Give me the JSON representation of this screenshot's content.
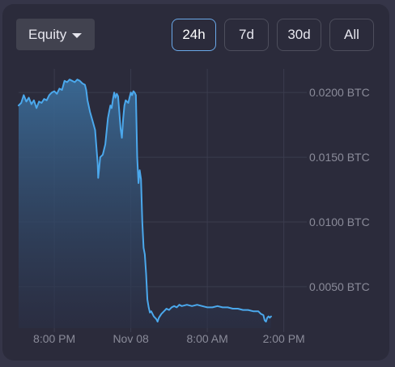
{
  "controls": {
    "metric_label": "Equity",
    "ranges": [
      {
        "label": "24h",
        "active": true
      },
      {
        "label": "7d",
        "active": false
      },
      {
        "label": "30d",
        "active": false
      },
      {
        "label": "All",
        "active": false
      }
    ],
    "caret_icon": "chevron-down-icon"
  },
  "colors": {
    "panel_bg": "#2b2b3b",
    "line": "#4ba8ec",
    "fill_top": "#3a6a96",
    "fill_bottom": "#2a2f45",
    "grid": "#3b3c4e",
    "axis_text": "#8a8b99",
    "active_border": "#6aa8e8"
  },
  "chart_data": {
    "type": "area",
    "title": "",
    "xlabel": "",
    "ylabel": "",
    "ylim": [
      0.0018,
      0.0212
    ],
    "y_ticks": [
      0.005,
      0.01,
      0.015,
      0.02
    ],
    "y_tick_labels": [
      "0.0050 BTC",
      "0.0100 BTC",
      "0.0150 BTC",
      "0.0200 BTC"
    ],
    "x_ticks": [
      1.0,
      4.0,
      7.0,
      10.0
    ],
    "x_tick_labels": [
      "8:00 PM",
      "Nov 08",
      "8:00 AM",
      "2:00 PM"
    ],
    "grid": true,
    "series": [
      {
        "values": [
          [
            -0.4,
            0.019
          ],
          [
            -0.3,
            0.0192
          ],
          [
            -0.2,
            0.0198
          ],
          [
            -0.1,
            0.0193
          ],
          [
            0.0,
            0.0196
          ],
          [
            0.1,
            0.0191
          ],
          [
            0.2,
            0.0194
          ],
          [
            0.3,
            0.0188
          ],
          [
            0.4,
            0.0193
          ],
          [
            0.5,
            0.0192
          ],
          [
            0.6,
            0.0195
          ],
          [
            0.7,
            0.0194
          ],
          [
            0.8,
            0.0198
          ],
          [
            0.9,
            0.02
          ],
          [
            1.0,
            0.0201
          ],
          [
            1.1,
            0.0199
          ],
          [
            1.2,
            0.0203
          ],
          [
            1.3,
            0.0202
          ],
          [
            1.4,
            0.0209
          ],
          [
            1.5,
            0.0208
          ],
          [
            1.6,
            0.021
          ],
          [
            1.7,
            0.0209
          ],
          [
            1.8,
            0.0208
          ],
          [
            1.9,
            0.021
          ],
          [
            2.0,
            0.0209
          ],
          [
            2.1,
            0.0207
          ],
          [
            2.2,
            0.0206
          ],
          [
            2.25,
            0.0202
          ],
          [
            2.3,
            0.0194
          ],
          [
            2.4,
            0.0185
          ],
          [
            2.5,
            0.0178
          ],
          [
            2.6,
            0.0171
          ],
          [
            2.65,
            0.0158
          ],
          [
            2.7,
            0.0145
          ],
          [
            2.72,
            0.0134
          ],
          [
            2.76,
            0.0142
          ],
          [
            2.8,
            0.015
          ],
          [
            2.9,
            0.0152
          ],
          [
            3.0,
            0.016
          ],
          [
            3.05,
            0.017
          ],
          [
            3.1,
            0.018
          ],
          [
            3.15,
            0.0185
          ],
          [
            3.2,
            0.019
          ],
          [
            3.25,
            0.0188
          ],
          [
            3.3,
            0.0195
          ],
          [
            3.35,
            0.02
          ],
          [
            3.4,
            0.0196
          ],
          [
            3.45,
            0.0199
          ],
          [
            3.5,
            0.0197
          ],
          [
            3.55,
            0.0185
          ],
          [
            3.6,
            0.0172
          ],
          [
            3.65,
            0.0165
          ],
          [
            3.7,
            0.018
          ],
          [
            3.75,
            0.019
          ],
          [
            3.8,
            0.0194
          ],
          [
            3.9,
            0.0192
          ],
          [
            3.95,
            0.0196
          ],
          [
            4.0,
            0.02
          ],
          [
            4.05,
            0.0198
          ],
          [
            4.1,
            0.0201
          ],
          [
            4.15,
            0.02
          ],
          [
            4.2,
            0.0198
          ],
          [
            4.25,
            0.015
          ],
          [
            4.3,
            0.013
          ],
          [
            4.35,
            0.014
          ],
          [
            4.4,
            0.0133
          ],
          [
            4.45,
            0.01
          ],
          [
            4.5,
            0.008
          ],
          [
            4.55,
            0.0075
          ],
          [
            4.6,
            0.006
          ],
          [
            4.65,
            0.004
          ],
          [
            4.7,
            0.0034
          ],
          [
            4.75,
            0.003
          ],
          [
            4.8,
            0.0031
          ],
          [
            4.9,
            0.0027
          ],
          [
            5.0,
            0.0025
          ],
          [
            5.05,
            0.0023
          ],
          [
            5.1,
            0.0026
          ],
          [
            5.2,
            0.0029
          ],
          [
            5.3,
            0.0031
          ],
          [
            5.4,
            0.0033
          ],
          [
            5.5,
            0.0032
          ],
          [
            5.6,
            0.0034
          ],
          [
            5.7,
            0.0035
          ],
          [
            5.8,
            0.0034
          ],
          [
            5.9,
            0.0036
          ],
          [
            6.0,
            0.0035
          ],
          [
            6.2,
            0.0036
          ],
          [
            6.4,
            0.0035
          ],
          [
            6.6,
            0.0036
          ],
          [
            6.8,
            0.0035
          ],
          [
            7.0,
            0.0034
          ],
          [
            7.2,
            0.0034
          ],
          [
            7.4,
            0.0035
          ],
          [
            7.6,
            0.0034
          ],
          [
            7.8,
            0.0034
          ],
          [
            8.0,
            0.0033
          ],
          [
            8.2,
            0.0033
          ],
          [
            8.4,
            0.0032
          ],
          [
            8.6,
            0.0032
          ],
          [
            8.8,
            0.0031
          ],
          [
            9.0,
            0.0031
          ],
          [
            9.1,
            0.0029
          ],
          [
            9.2,
            0.0028
          ],
          [
            9.25,
            0.0024
          ],
          [
            9.3,
            0.0023
          ],
          [
            9.35,
            0.0026
          ],
          [
            9.4,
            0.0027
          ],
          [
            9.45,
            0.0026
          ],
          [
            9.5,
            0.0027
          ]
        ]
      }
    ]
  }
}
